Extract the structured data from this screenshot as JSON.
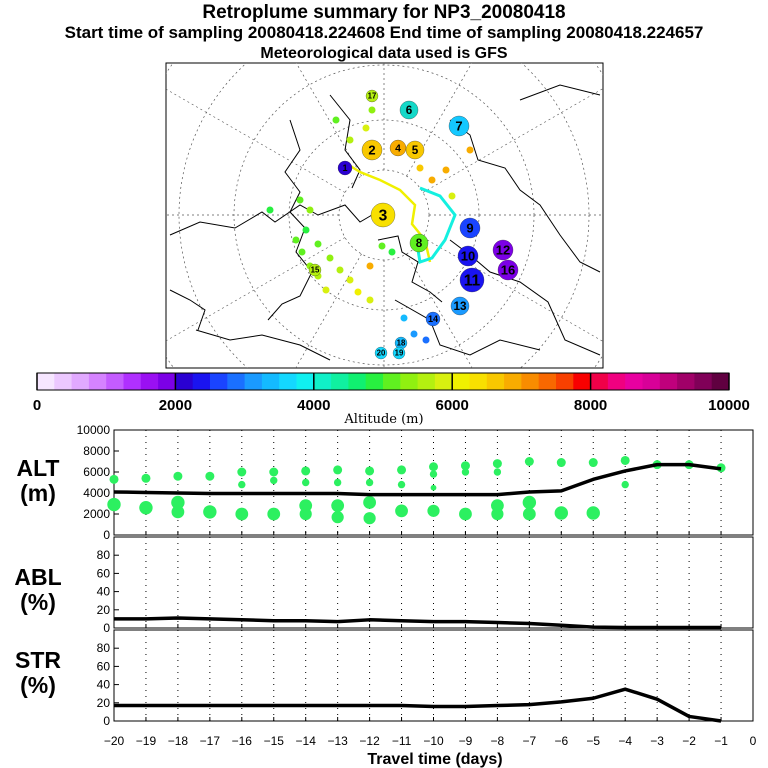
{
  "titles": {
    "line1": "Retroplume summary for NP3_20080418",
    "line2": "Start time of sampling 20080418.224608     End time of sampling 20080418.224657",
    "line3": "Meteorological data used is GFS"
  },
  "colorbar": {
    "label": "Altitude (m)",
    "ticks": [
      "0",
      "2000",
      "4000",
      "6000",
      "8000",
      "10000"
    ],
    "colors": [
      "#f6e6ff",
      "#ecc8ff",
      "#e1a9ff",
      "#d583ff",
      "#c45cff",
      "#b030ff",
      "#9a10f2",
      "#7c00e6",
      "#2a00d2",
      "#1a14f0",
      "#1a44ff",
      "#1a70ff",
      "#1a9aff",
      "#14baff",
      "#14d8ff",
      "#10f0f0",
      "#10f0c8",
      "#10f0a0",
      "#10f070",
      "#28f040",
      "#60f020",
      "#90f010",
      "#b4f010",
      "#d8f010",
      "#f0f000",
      "#f8e000",
      "#f8c800",
      "#f8ac00",
      "#f88c00",
      "#f86800",
      "#f84000",
      "#f80000",
      "#f00048",
      "#f00080",
      "#e800a0",
      "#d80098",
      "#c0007c",
      "#a00068",
      "#800058",
      "#600040"
    ]
  },
  "map": {
    "markers": [
      {
        "label": "1",
        "color": "#2a00d2"
      },
      {
        "label": "2",
        "color": "#f8c800"
      },
      {
        "label": "3",
        "color": "#f8e000"
      },
      {
        "label": "4",
        "color": "#f8ac00"
      },
      {
        "label": "5",
        "color": "#f8c800"
      },
      {
        "label": "6",
        "color": "#14d8c8"
      },
      {
        "label": "7",
        "color": "#14c8ff"
      },
      {
        "label": "8",
        "color": "#60f020"
      },
      {
        "label": "9",
        "color": "#1a44ff"
      },
      {
        "label": "10",
        "color": "#1a14f0"
      },
      {
        "label": "11",
        "color": "#1a14f0"
      },
      {
        "label": "12",
        "color": "#7c00e6"
      },
      {
        "label": "13",
        "color": "#1a9aff"
      },
      {
        "label": "14",
        "color": "#1a70ff"
      },
      {
        "label": "15",
        "color": "#b4f010"
      },
      {
        "label": "16",
        "color": "#7c00e6"
      },
      {
        "label": "17",
        "color": "#b4f010"
      },
      {
        "label": "18",
        "color": "#14baff"
      },
      {
        "label": "19",
        "color": "#14d8ff"
      },
      {
        "label": "20",
        "color": "#14d8ff"
      }
    ]
  },
  "chart_data": [
    {
      "type": "scatter+line",
      "title": "ALT (m)",
      "title_lines": [
        "ALT",
        "(m)"
      ],
      "xlabel": "Travel time (days)",
      "xlim": [
        -20,
        0
      ],
      "ylim": [
        0,
        10000
      ],
      "yticks": [
        "0",
        "2000",
        "4000",
        "6000",
        "8000",
        "10000"
      ],
      "grid": "vertical dotted",
      "line": {
        "x": [
          -20,
          -19,
          -18,
          -17,
          -16,
          -15,
          -14,
          -13,
          -12,
          -11,
          -10,
          -9,
          -8,
          -7,
          -6,
          -5,
          -4,
          -3,
          -2,
          -1
        ],
        "y": [
          4100,
          4050,
          4000,
          3950,
          3950,
          3950,
          3950,
          3950,
          3850,
          3850,
          3850,
          3850,
          3850,
          4100,
          4200,
          5300,
          6100,
          6700,
          6700,
          6300
        ]
      },
      "points": [
        {
          "x": -20,
          "y": [
            5300,
            2900
          ]
        },
        {
          "x": -19,
          "y": [
            5400,
            2600
          ]
        },
        {
          "x": -18,
          "y": [
            5600,
            3100,
            2200
          ]
        },
        {
          "x": -17,
          "y": [
            5600,
            2200
          ]
        },
        {
          "x": -16,
          "y": [
            6000,
            4800,
            2000
          ]
        },
        {
          "x": -15,
          "y": [
            6000,
            5200,
            2000
          ]
        },
        {
          "x": -14,
          "y": [
            6100,
            5000,
            2800,
            2000
          ]
        },
        {
          "x": -13,
          "y": [
            6200,
            5000,
            2800,
            1700
          ]
        },
        {
          "x": -12,
          "y": [
            6100,
            5000,
            3100,
            1600
          ]
        },
        {
          "x": -11,
          "y": [
            6200,
            4800,
            2300
          ]
        },
        {
          "x": -10,
          "y": [
            6500,
            5800,
            4500,
            2300
          ]
        },
        {
          "x": -9,
          "y": [
            6600,
            6000,
            2000
          ]
        },
        {
          "x": -8,
          "y": [
            6800,
            6000,
            2800,
            2000
          ]
        },
        {
          "x": -7,
          "y": [
            7000,
            3100,
            2000
          ]
        },
        {
          "x": -6,
          "y": [
            6900,
            2100
          ]
        },
        {
          "x": -5,
          "y": [
            6900,
            2100
          ]
        },
        {
          "x": -4,
          "y": [
            7100,
            4800
          ]
        },
        {
          "x": -3,
          "y": [
            6700
          ]
        },
        {
          "x": -2,
          "y": [
            6700
          ]
        },
        {
          "x": -1,
          "y": [
            6400
          ]
        }
      ]
    },
    {
      "type": "line",
      "title": "ABL (%)",
      "title_lines": [
        "ABL",
        "(%)"
      ],
      "xlim": [
        -20,
        0
      ],
      "ylim": [
        0,
        100
      ],
      "yticks": [
        "0",
        "20",
        "40",
        "60",
        "80"
      ],
      "x": [
        -20,
        -19,
        -18,
        -17,
        -16,
        -15,
        -14,
        -13,
        -12,
        -11,
        -10,
        -9,
        -8,
        -7,
        -6,
        -5,
        -4,
        -3,
        -2,
        -1
      ],
      "y": [
        10,
        10,
        11,
        10,
        9,
        8,
        8,
        7,
        9,
        8,
        7,
        7,
        6,
        5,
        3,
        1,
        0.5,
        0.5,
        0.5,
        0.5
      ]
    },
    {
      "type": "line",
      "title": "STR (%)",
      "title_lines": [
        "STR",
        "(%)"
      ],
      "xlabel": "Travel time (days)",
      "xlim": [
        -20,
        0
      ],
      "ylim": [
        0,
        100
      ],
      "yticks": [
        "0",
        "20",
        "40",
        "60",
        "80"
      ],
      "xticks": [
        "−20",
        "−19",
        "−18",
        "−17",
        "−16",
        "−15",
        "−14",
        "−13",
        "−12",
        "−11",
        "−10",
        "−9",
        "−8",
        "−7",
        "−6",
        "−5",
        "−4",
        "−3",
        "−2",
        "−1",
        "0"
      ],
      "x": [
        -20,
        -19,
        -18,
        -17,
        -16,
        -15,
        -14,
        -13,
        -12,
        -11,
        -10,
        -9,
        -8,
        -7,
        -6,
        -5,
        -4,
        -3,
        -2,
        -1
      ],
      "y": [
        17,
        17,
        17,
        17,
        17,
        17,
        17,
        17,
        17,
        17,
        16,
        16,
        17,
        18,
        21,
        25,
        35,
        24,
        5,
        0
      ]
    }
  ]
}
